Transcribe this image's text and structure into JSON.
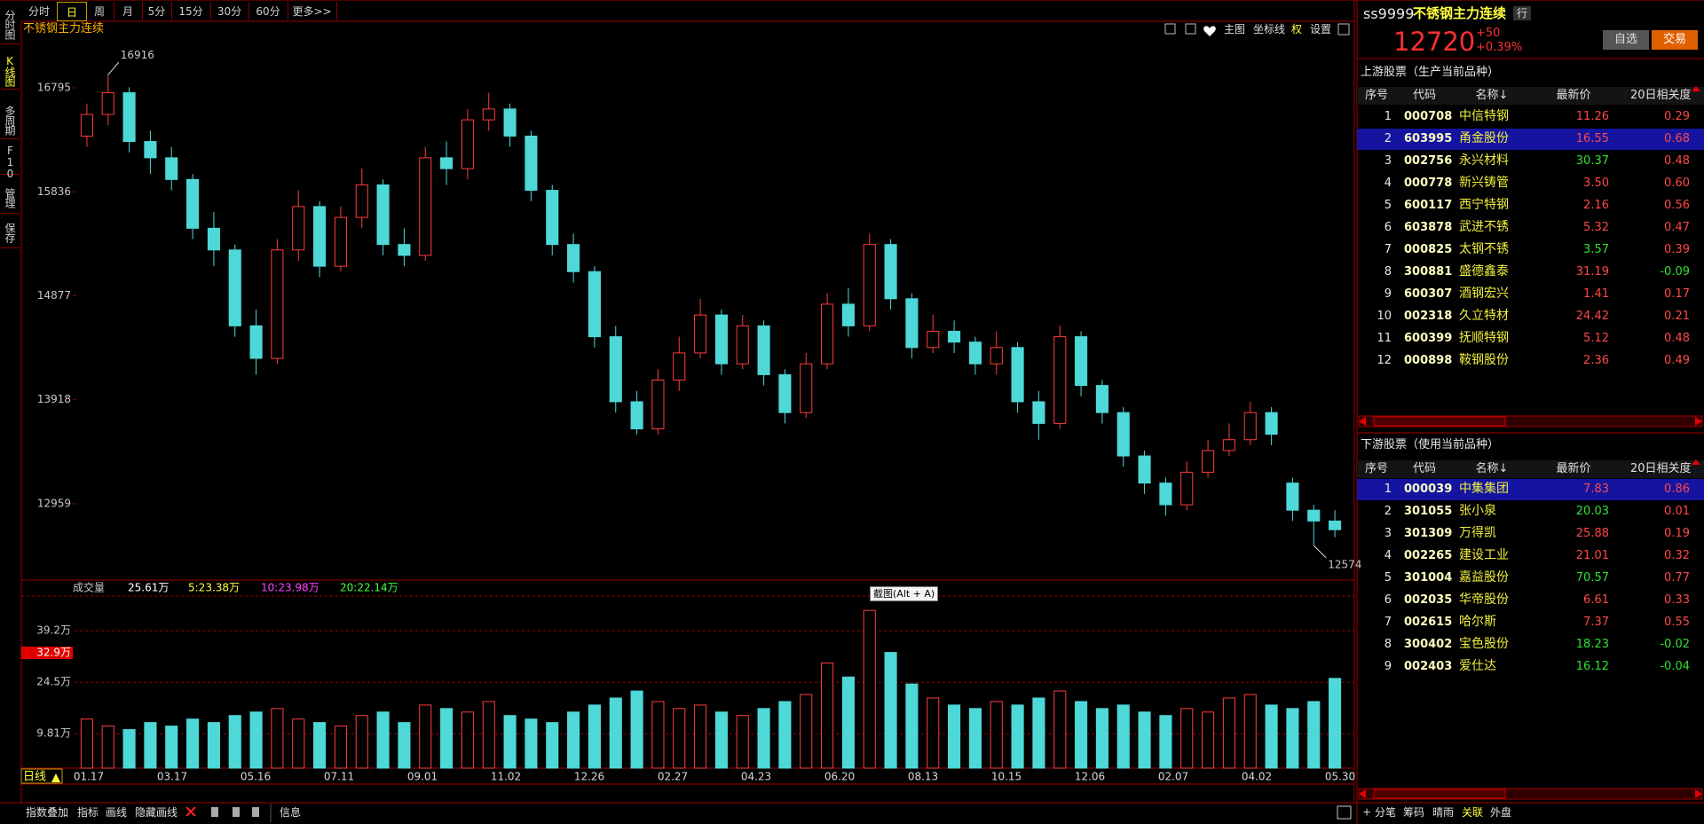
{
  "tabs": {
    "items": [
      "分时",
      "日",
      "周",
      "月",
      "5分",
      "15分",
      "30分",
      "60分",
      "更多>>"
    ],
    "active": 1
  },
  "sidebar": {
    "items": [
      "分时图",
      "K线图",
      "多周期",
      "F10",
      "管理",
      "保存"
    ],
    "active": 1
  },
  "chart": {
    "title": "不锈钢主力连续",
    "tools": [
      "主图",
      "坐标线",
      "权",
      "设置"
    ],
    "ylim": [
      12288,
      17278
    ],
    "yticks": [
      16795,
      15836,
      14877,
      13918,
      12959
    ],
    "candles": [
      [
        16350,
        16650,
        16250,
        16550
      ],
      [
        16550,
        16916,
        16450,
        16750
      ],
      [
        16750,
        16800,
        16200,
        16300
      ],
      [
        16300,
        16400,
        16000,
        16150
      ],
      [
        16150,
        16250,
        15850,
        15950
      ],
      [
        15950,
        16000,
        15400,
        15500
      ],
      [
        15500,
        15650,
        15150,
        15300
      ],
      [
        15300,
        15350,
        14500,
        14600
      ],
      [
        14600,
        14750,
        14150,
        14300
      ],
      [
        14300,
        15400,
        14250,
        15300
      ],
      [
        15300,
        15850,
        15200,
        15700
      ],
      [
        15700,
        15750,
        15050,
        15150
      ],
      [
        15150,
        15700,
        15100,
        15600
      ],
      [
        15600,
        16050,
        15500,
        15900
      ],
      [
        15900,
        15950,
        15250,
        15350
      ],
      [
        15350,
        15500,
        15150,
        15250
      ],
      [
        15250,
        16250,
        15200,
        16150
      ],
      [
        16150,
        16300,
        15900,
        16050
      ],
      [
        16050,
        16600,
        15950,
        16500
      ],
      [
        16500,
        16750,
        16400,
        16600
      ],
      [
        16600,
        16650,
        16250,
        16350
      ],
      [
        16350,
        16400,
        15750,
        15850
      ],
      [
        15850,
        15900,
        15250,
        15350
      ],
      [
        15350,
        15450,
        15000,
        15100
      ],
      [
        15100,
        15150,
        14400,
        14500
      ],
      [
        14500,
        14600,
        13800,
        13900
      ],
      [
        13900,
        14000,
        13600,
        13650
      ],
      [
        13650,
        14200,
        13600,
        14100
      ],
      [
        14100,
        14500,
        14000,
        14350
      ],
      [
        14350,
        14850,
        14300,
        14700
      ],
      [
        14700,
        14750,
        14150,
        14250
      ],
      [
        14250,
        14700,
        14200,
        14600
      ],
      [
        14600,
        14650,
        14050,
        14150
      ],
      [
        14150,
        14200,
        13700,
        13800
      ],
      [
        13800,
        14350,
        13750,
        14250
      ],
      [
        14250,
        14900,
        14200,
        14800
      ],
      [
        14800,
        14950,
        14500,
        14600
      ],
      [
        14600,
        15450,
        14550,
        15350
      ],
      [
        15350,
        15400,
        14750,
        14850
      ],
      [
        14850,
        14900,
        14300,
        14400
      ],
      [
        14400,
        14700,
        14350,
        14550
      ],
      [
        14550,
        14650,
        14350,
        14450
      ],
      [
        14450,
        14500,
        14150,
        14250
      ],
      [
        14250,
        14550,
        14150,
        14400
      ],
      [
        14400,
        14450,
        13800,
        13900
      ],
      [
        13900,
        14000,
        13550,
        13700
      ],
      [
        13700,
        14600,
        13650,
        14500
      ],
      [
        14500,
        14550,
        13950,
        14050
      ],
      [
        14050,
        14100,
        13700,
        13800
      ],
      [
        13800,
        13850,
        13300,
        13400
      ],
      [
        13400,
        13450,
        13050,
        13150
      ],
      [
        13150,
        13200,
        12850,
        12950
      ],
      [
        12950,
        13350,
        12900,
        13250
      ],
      [
        13250,
        13550,
        13200,
        13450
      ],
      [
        13450,
        13700,
        13400,
        13550
      ],
      [
        13550,
        13900,
        13500,
        13800
      ],
      [
        13800,
        13850,
        13500,
        13600
      ],
      [
        13150,
        13200,
        12800,
        12900
      ],
      [
        12900,
        12950,
        12574,
        12800
      ],
      [
        12800,
        12900,
        12650,
        12720
      ]
    ],
    "high_label": 16916,
    "low_label": 12574,
    "volume": {
      "title": "成交量",
      "stats": [
        "25.61万",
        "5:23.38万",
        "10:23.98万",
        "20:22.14万"
      ],
      "stat_colors": [
        "#ffffff",
        "#ffff40",
        "#ff40ff",
        "#40ff40"
      ],
      "ylim": [
        0,
        49.1
      ],
      "yticks": [
        {
          "value": 39.2,
          "label": "39.2万"
        },
        {
          "value": 24.5,
          "label": "24.5万"
        },
        {
          "value": 9.81,
          "label": "9.81万"
        }
      ],
      "marker": {
        "value": 32.9,
        "label": "32.9万"
      },
      "values": [
        14,
        12,
        11,
        13,
        12,
        14,
        13,
        15,
        16,
        17,
        14,
        13,
        12,
        15,
        16,
        13,
        18,
        17,
        16,
        19,
        15,
        14,
        13,
        16,
        18,
        20,
        22,
        19,
        17,
        18,
        16,
        15,
        17,
        19,
        21,
        30,
        26,
        45,
        33,
        24,
        20,
        18,
        17,
        19,
        18,
        20,
        22,
        19,
        17,
        18,
        16,
        15,
        17,
        16,
        20,
        21,
        18,
        17,
        19,
        25.61
      ]
    },
    "period": "日线",
    "dates": [
      "01.17",
      "03.17",
      "05.16",
      "07.11",
      "09.01",
      "11.02",
      "12.26",
      "02.27",
      "04.23",
      "06.20",
      "08.13",
      "10.15",
      "12.06",
      "02.07",
      "04.02",
      "05.30"
    ],
    "tooltip": "截图(Alt + A)"
  },
  "toolbar": {
    "items": [
      "指数叠加",
      "指标",
      "画线",
      "隐藏画线"
    ],
    "info": "信息"
  },
  "quote": {
    "code": "ss9999",
    "name": "不锈钢主力连续",
    "tag": "行",
    "price": 12720,
    "change": "+50",
    "pct": "+0.39%",
    "buttons": [
      "自选",
      "交易"
    ]
  },
  "upstream": {
    "title": "上游股票（生产当前品种）",
    "columns": [
      "序号",
      "代码",
      "名称↓",
      "最新价",
      "20日相关度"
    ],
    "selected": 1,
    "rows": [
      {
        "no": 1,
        "code": "000708",
        "name": "中信特钢",
        "price": "11.26",
        "corr": "0.29",
        "price_color": "#ff4848",
        "corr_color": "#ff4848"
      },
      {
        "no": 2,
        "code": "603995",
        "name": "甬金股份",
        "price": "16.55",
        "corr": "0.68",
        "price_color": "#ff4848",
        "corr_color": "#ff4848"
      },
      {
        "no": 3,
        "code": "002756",
        "name": "永兴材料",
        "price": "30.37",
        "corr": "0.48",
        "price_color": "#30e030",
        "corr_color": "#ff4848"
      },
      {
        "no": 4,
        "code": "000778",
        "name": "新兴铸管",
        "price": "3.50",
        "corr": "0.60",
        "price_color": "#ff4848",
        "corr_color": "#ff4848"
      },
      {
        "no": 5,
        "code": "600117",
        "name": "西宁特钢",
        "price": "2.16",
        "corr": "0.56",
        "price_color": "#ff4848",
        "corr_color": "#ff4848"
      },
      {
        "no": 6,
        "code": "603878",
        "name": "武进不锈",
        "price": "5.32",
        "corr": "0.47",
        "price_color": "#ff4848",
        "corr_color": "#ff4848"
      },
      {
        "no": 7,
        "code": "000825",
        "name": "太钢不锈",
        "price": "3.57",
        "corr": "0.39",
        "price_color": "#30e030",
        "corr_color": "#ff4848"
      },
      {
        "no": 8,
        "code": "300881",
        "name": "盛德鑫泰",
        "price": "31.19",
        "corr": "-0.09",
        "price_color": "#ff4848",
        "corr_color": "#30e030"
      },
      {
        "no": 9,
        "code": "600307",
        "name": "酒钢宏兴",
        "price": "1.41",
        "corr": "0.17",
        "price_color": "#ff4848",
        "corr_color": "#ff4848"
      },
      {
        "no": 10,
        "code": "002318",
        "name": "久立特材",
        "price": "24.42",
        "corr": "0.21",
        "price_color": "#ff4848",
        "corr_color": "#ff4848"
      },
      {
        "no": 11,
        "code": "600399",
        "name": "抚顺特钢",
        "price": "5.12",
        "corr": "0.48",
        "price_color": "#ff4848",
        "corr_color": "#ff4848"
      },
      {
        "no": 12,
        "code": "000898",
        "name": "鞍钢股份",
        "price": "2.36",
        "corr": "0.49",
        "price_color": "#ff4848",
        "corr_color": "#ff4848"
      }
    ]
  },
  "downstream": {
    "title": "下游股票（使用当前品种）",
    "columns": [
      "序号",
      "代码",
      "名称↓",
      "最新价",
      "20日相关度"
    ],
    "selected": 0,
    "rows": [
      {
        "no": 1,
        "code": "000039",
        "name": "中集集团",
        "price": "7.83",
        "corr": "0.86",
        "price_color": "#ff4848",
        "corr_color": "#ff4848"
      },
      {
        "no": 2,
        "code": "301055",
        "name": "张小泉",
        "price": "20.03",
        "corr": "0.01",
        "price_color": "#30e030",
        "corr_color": "#ff4848"
      },
      {
        "no": 3,
        "code": "301309",
        "name": "万得凯",
        "price": "25.88",
        "corr": "0.19",
        "price_color": "#ff4848",
        "corr_color": "#ff4848"
      },
      {
        "no": 4,
        "code": "002265",
        "name": "建设工业",
        "price": "21.01",
        "corr": "0.32",
        "price_color": "#ff4848",
        "corr_color": "#ff4848"
      },
      {
        "no": 5,
        "code": "301004",
        "name": "嘉益股份",
        "price": "70.57",
        "corr": "0.77",
        "price_color": "#30e030",
        "corr_color": "#ff4848"
      },
      {
        "no": 6,
        "code": "002035",
        "name": "华帝股份",
        "price": "6.61",
        "corr": "0.33",
        "price_color": "#ff4848",
        "corr_color": "#ff4848"
      },
      {
        "no": 7,
        "code": "002615",
        "name": "哈尔斯",
        "price": "7.37",
        "corr": "0.55",
        "price_color": "#ff4848",
        "corr_color": "#ff4848"
      },
      {
        "no": 8,
        "code": "300402",
        "name": "宝色股份",
        "price": "18.23",
        "corr": "-0.02",
        "price_color": "#30e030",
        "corr_color": "#30e030"
      },
      {
        "no": 9,
        "code": "002403",
        "name": "爱仕达",
        "price": "16.12",
        "corr": "-0.04",
        "price_color": "#30e030",
        "corr_color": "#30e030"
      }
    ]
  },
  "bottom_tabs": {
    "items": [
      "分笔",
      "筹码",
      "晴雨",
      "关联",
      "外盘"
    ],
    "active": 3
  }
}
